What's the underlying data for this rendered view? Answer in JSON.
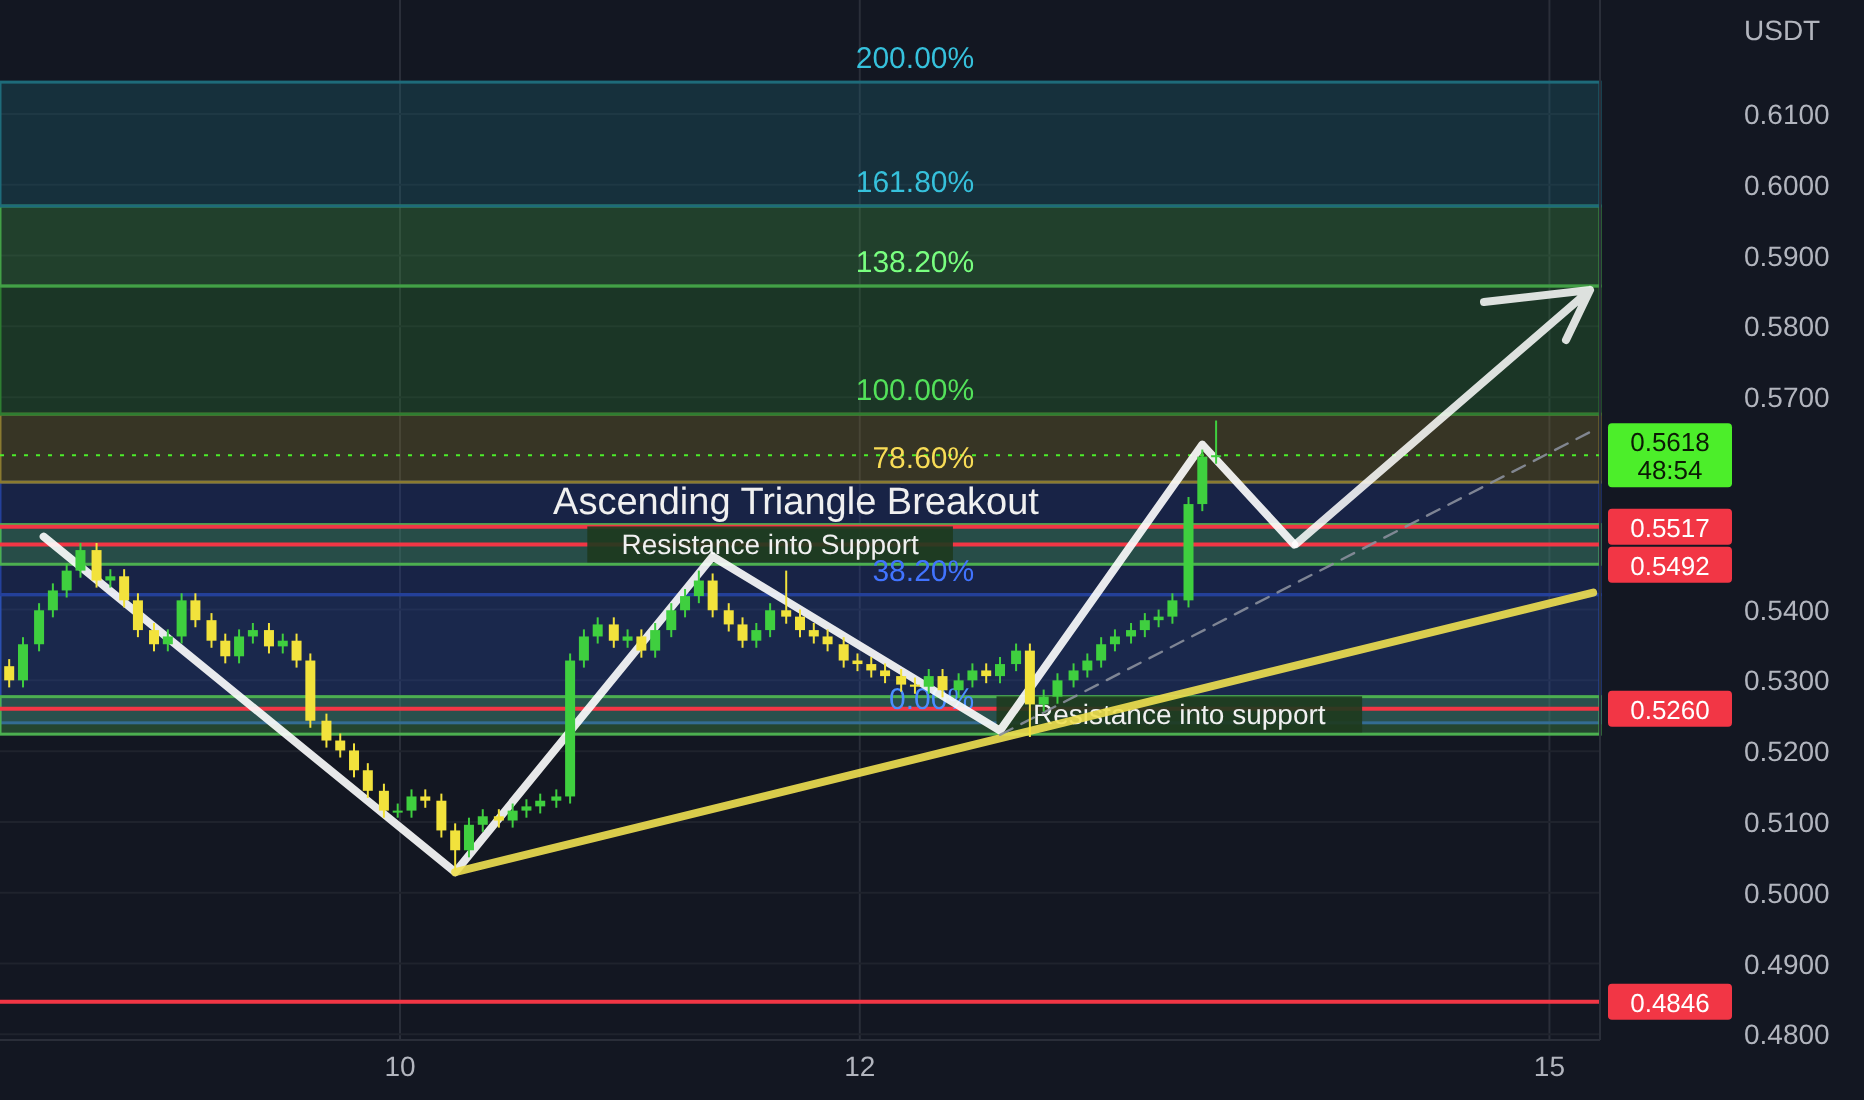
{
  "chart_data": {
    "type": "candlestick",
    "ylabel": "USDT",
    "xlim": [
      8.26,
      15.22
    ],
    "ylim": [
      0.4792,
      0.6261
    ],
    "xticks": [
      10,
      12,
      15
    ],
    "yticks": [
      {
        "value": 0.48,
        "label": "0.4800"
      },
      {
        "value": 0.49,
        "label": "0.4900"
      },
      {
        "value": 0.5,
        "label": "0.5000"
      },
      {
        "value": 0.51,
        "label": "0.5100"
      },
      {
        "value": 0.52,
        "label": "0.5200"
      },
      {
        "value": 0.53,
        "label": "0.5300"
      },
      {
        "value": 0.54,
        "label": "0.5400"
      },
      {
        "value": 0.57,
        "label": "0.5700"
      },
      {
        "value": 0.58,
        "label": "0.5800"
      },
      {
        "value": 0.59,
        "label": "0.5900"
      },
      {
        "value": 0.6,
        "label": "0.6000"
      },
      {
        "value": 0.61,
        "label": "0.6100"
      }
    ],
    "grid": true,
    "x": [
      8.3,
      8.36,
      8.43,
      8.49,
      8.55,
      8.61,
      8.68,
      8.74,
      8.8,
      8.86,
      8.93,
      8.99,
      9.05,
      9.11,
      9.18,
      9.24,
      9.3,
      9.36,
      9.43,
      9.49,
      9.55,
      9.61,
      9.68,
      9.74,
      9.8,
      9.86,
      9.93,
      9.99,
      10.05,
      10.11,
      10.18,
      10.24,
      10.3,
      10.36,
      10.43,
      10.49,
      10.55,
      10.61,
      10.68,
      10.74,
      10.8,
      10.86,
      10.93,
      10.99,
      11.05,
      11.11,
      11.18,
      11.24,
      11.3,
      11.36,
      11.43,
      11.49,
      11.55,
      11.61,
      11.68,
      11.74,
      11.8,
      11.86,
      11.93,
      11.99,
      12.05,
      12.11,
      12.18,
      12.24,
      12.3,
      12.36,
      12.43,
      12.49,
      12.55,
      12.61,
      12.68,
      12.74,
      12.8,
      12.86,
      12.93,
      12.99,
      13.05,
      13.11,
      13.18,
      13.24,
      13.3,
      13.36,
      13.43,
      13.49,
      13.55
    ],
    "ohlc": [
      [
        0.532,
        0.533,
        0.529,
        0.53
      ],
      [
        0.53,
        0.5361,
        0.529,
        0.5351
      ],
      [
        0.5351,
        0.5409,
        0.5341,
        0.5399
      ],
      [
        0.5399,
        0.5437,
        0.5389,
        0.5427
      ],
      [
        0.5427,
        0.5465,
        0.5417,
        0.5455
      ],
      [
        0.5455,
        0.5494,
        0.5445,
        0.5484
      ],
      [
        0.5484,
        0.5494,
        0.5431,
        0.5441
      ],
      [
        0.5441,
        0.5457,
        0.5431,
        0.5447
      ],
      [
        0.5447,
        0.5457,
        0.5403,
        0.5413
      ],
      [
        0.5413,
        0.5423,
        0.5361,
        0.5371
      ],
      [
        0.5371,
        0.5381,
        0.5341,
        0.5351
      ],
      [
        0.5351,
        0.5372,
        0.5341,
        0.5362
      ],
      [
        0.5362,
        0.5423,
        0.5352,
        0.5413
      ],
      [
        0.5413,
        0.5423,
        0.5375,
        0.5385
      ],
      [
        0.5385,
        0.5395,
        0.5346,
        0.5356
      ],
      [
        0.5356,
        0.5366,
        0.5324,
        0.5334
      ],
      [
        0.5334,
        0.5372,
        0.5324,
        0.5362
      ],
      [
        0.5362,
        0.5381,
        0.5352,
        0.5371
      ],
      [
        0.5371,
        0.5381,
        0.5338,
        0.5348
      ],
      [
        0.5348,
        0.5366,
        0.5338,
        0.5356
      ],
      [
        0.5356,
        0.5366,
        0.5318,
        0.5328
      ],
      [
        0.5328,
        0.5338,
        0.5233,
        0.5243
      ],
      [
        0.5243,
        0.5253,
        0.5205,
        0.5215
      ],
      [
        0.5215,
        0.5225,
        0.5191,
        0.5201
      ],
      [
        0.5201,
        0.5211,
        0.5163,
        0.5173
      ],
      [
        0.5173,
        0.5183,
        0.5134,
        0.5144
      ],
      [
        0.5144,
        0.5154,
        0.5106,
        0.5116
      ],
      [
        0.5116,
        0.5126,
        0.5106,
        0.5116
      ],
      [
        0.5116,
        0.5146,
        0.5106,
        0.5136
      ],
      [
        0.5136,
        0.5146,
        0.512,
        0.513
      ],
      [
        0.513,
        0.514,
        0.5078,
        0.5088
      ],
      [
        0.5088,
        0.5098,
        0.5032,
        0.506
      ],
      [
        0.506,
        0.5106,
        0.505,
        0.5096
      ],
      [
        0.5096,
        0.5118,
        0.5086,
        0.5108
      ],
      [
        0.5108,
        0.5118,
        0.5092,
        0.5102
      ],
      [
        0.5102,
        0.5126,
        0.5092,
        0.5116
      ],
      [
        0.5116,
        0.5132,
        0.5106,
        0.5122
      ],
      [
        0.5122,
        0.514,
        0.5112,
        0.513
      ],
      [
        0.513,
        0.5146,
        0.512,
        0.5136
      ],
      [
        0.5136,
        0.5338,
        0.5126,
        0.5328
      ],
      [
        0.5328,
        0.5372,
        0.5318,
        0.5362
      ],
      [
        0.5362,
        0.5389,
        0.5352,
        0.5379
      ],
      [
        0.5379,
        0.5389,
        0.5346,
        0.5356
      ],
      [
        0.5356,
        0.5372,
        0.5346,
        0.5362
      ],
      [
        0.5362,
        0.5372,
        0.5332,
        0.5342
      ],
      [
        0.5342,
        0.5381,
        0.5332,
        0.5371
      ],
      [
        0.5371,
        0.5409,
        0.5361,
        0.5399
      ],
      [
        0.5399,
        0.5429,
        0.5389,
        0.5419
      ],
      [
        0.5419,
        0.5455,
        0.5409,
        0.5441
      ],
      [
        0.5441,
        0.5451,
        0.5389,
        0.5399
      ],
      [
        0.5399,
        0.5409,
        0.5369,
        0.5379
      ],
      [
        0.5379,
        0.5389,
        0.5346,
        0.5356
      ],
      [
        0.5356,
        0.5381,
        0.5346,
        0.5371
      ],
      [
        0.5371,
        0.5409,
        0.5361,
        0.5399
      ],
      [
        0.5399,
        0.5455,
        0.538,
        0.539
      ],
      [
        0.539,
        0.54,
        0.5361,
        0.5371
      ],
      [
        0.5371,
        0.5381,
        0.5352,
        0.5362
      ],
      [
        0.5362,
        0.5372,
        0.5341,
        0.5351
      ],
      [
        0.5351,
        0.5361,
        0.5318,
        0.5328
      ],
      [
        0.5328,
        0.5338,
        0.5313,
        0.5323
      ],
      [
        0.5323,
        0.5333,
        0.5304,
        0.5314
      ],
      [
        0.5314,
        0.5324,
        0.5296,
        0.5306
      ],
      [
        0.5306,
        0.5316,
        0.5284,
        0.5294
      ],
      [
        0.5294,
        0.5304,
        0.5281,
        0.5291
      ],
      [
        0.5291,
        0.5316,
        0.5281,
        0.5306
      ],
      [
        0.5306,
        0.5316,
        0.5276,
        0.5286
      ],
      [
        0.5286,
        0.531,
        0.5276,
        0.53
      ],
      [
        0.53,
        0.5324,
        0.529,
        0.5314
      ],
      [
        0.5314,
        0.5324,
        0.5296,
        0.5306
      ],
      [
        0.5306,
        0.5333,
        0.5296,
        0.5323
      ],
      [
        0.5323,
        0.5352,
        0.5313,
        0.5342
      ],
      [
        0.5342,
        0.5352,
        0.522,
        0.5266
      ],
      [
        0.5266,
        0.5287,
        0.5256,
        0.5277
      ],
      [
        0.5277,
        0.531,
        0.5267,
        0.53
      ],
      [
        0.53,
        0.5324,
        0.529,
        0.5314
      ],
      [
        0.5314,
        0.5338,
        0.5304,
        0.5328
      ],
      [
        0.5328,
        0.5361,
        0.5318,
        0.5351
      ],
      [
        0.5351,
        0.5372,
        0.5341,
        0.5362
      ],
      [
        0.5362,
        0.5381,
        0.5352,
        0.5371
      ],
      [
        0.5371,
        0.5395,
        0.5361,
        0.5385
      ],
      [
        0.5385,
        0.54,
        0.5375,
        0.539
      ],
      [
        0.539,
        0.5423,
        0.538,
        0.5413
      ],
      [
        0.5413,
        0.5559,
        0.5403,
        0.5549
      ],
      [
        0.5549,
        0.5626,
        0.5539,
        0.5616
      ],
      [
        0.5616,
        0.5667,
        0.5606,
        0.5618
      ]
    ],
    "series": [
      {
        "type": "line",
        "color": "#ffffff",
        "x": [
          8.45,
          10.24,
          11.36,
          12.61,
          13.49,
          13.89
        ],
        "values": [
          0.5503,
          0.5029,
          0.5475,
          0.5229,
          0.5633,
          0.5492
        ]
      },
      {
        "type": "line",
        "color": "#f0e050",
        "x": [
          10.24,
          15.19
        ],
        "values": [
          0.5029,
          0.5424
        ]
      },
      {
        "type": "line",
        "color": "#8a8f9c",
        "line_style": "dashed",
        "x": [
          12.61,
          15.19
        ],
        "values": [
          0.5223,
          0.5653
        ]
      }
    ],
    "bands": [
      {
        "axis": "y",
        "from": 0.524,
        "to": 0.5421,
        "color": "#2a4fb0"
      },
      {
        "axis": "y",
        "from": 0.5421,
        "to": 0.558,
        "color": "#24409a"
      },
      {
        "axis": "y",
        "from": 0.558,
        "to": 0.5676,
        "color": "#8a7a30"
      },
      {
        "axis": "y",
        "from": 0.5676,
        "to": 0.5857,
        "color": "#2e7d32"
      },
      {
        "axis": "y",
        "from": 0.5857,
        "to": 0.597,
        "color": "#43a047"
      },
      {
        "axis": "y",
        "from": 0.597,
        "to": 0.6145,
        "color": "#1e6b7a"
      },
      {
        "axis": "y",
        "from": 0.5464,
        "to": 0.552,
        "color": "#4caf50"
      },
      {
        "axis": "y",
        "from": 0.5224,
        "to": 0.5277,
        "color": "#4caf50"
      }
    ],
    "ref_lines": [
      {
        "axis": "y",
        "value": 0.5618,
        "label": "0.5618\n48:54",
        "color": "#4cee2a",
        "line_style": "dotted"
      },
      {
        "axis": "y",
        "value": 0.5517,
        "label": "0.5517",
        "color": "#f23645"
      },
      {
        "axis": "y",
        "value": 0.5492,
        "label": "0.5492",
        "color": "#f23645"
      },
      {
        "axis": "y",
        "value": 0.526,
        "label": "0.5260",
        "color": "#f23645"
      },
      {
        "axis": "y",
        "value": 0.4846,
        "label": "0.4846",
        "color": "#f23645"
      }
    ],
    "annotations": [
      "Ascending Triangle Breakout",
      {
        "text": "Resistance into Support",
        "x": 11.61,
        "y": 0.5492
      },
      {
        "text": "Resistance into support",
        "x": 13.39,
        "y": 0.5252
      },
      {
        "text": "0.00%",
        "x": 12.55,
        "y": 0.524
      },
      {
        "text": "38.20%",
        "x": 12.55,
        "y": 0.5421
      },
      {
        "text": "78.60%",
        "x": 12.55,
        "y": 0.558
      },
      {
        "text": "100.00%",
        "x": 12.55,
        "y": 0.5676
      },
      {
        "text": "138.20%",
        "x": 12.55,
        "y": 0.5857
      },
      {
        "text": "161.80%",
        "x": 12.55,
        "y": 0.597
      },
      {
        "text": "200.00%",
        "x": 12.55,
        "y": 0.6145
      }
    ]
  }
}
